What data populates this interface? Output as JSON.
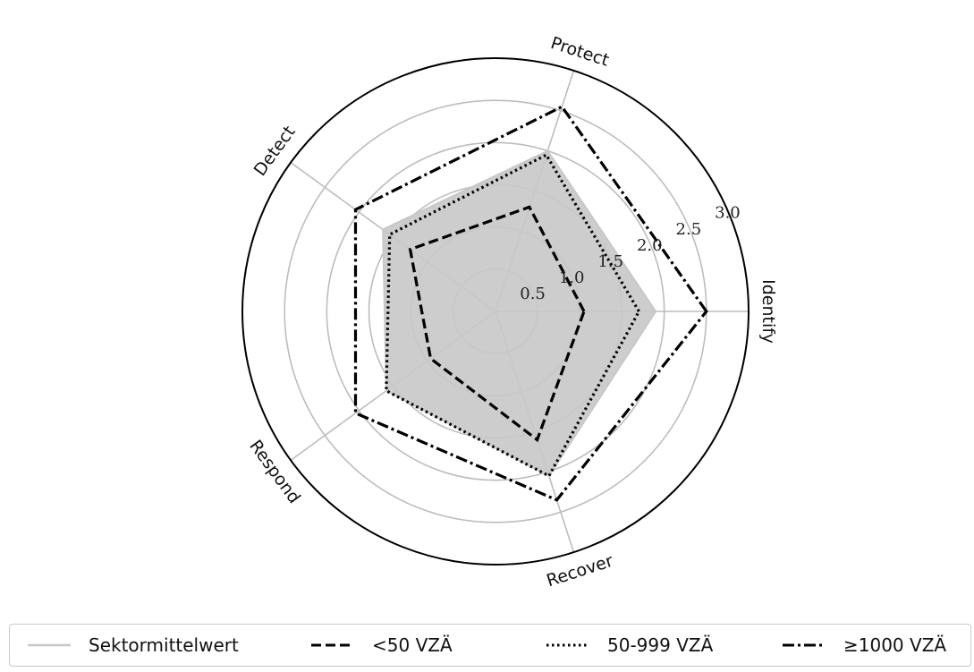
{
  "chart_data": {
    "type": "radar",
    "title": "",
    "axes": [
      "Identify",
      "Protect",
      "Detect",
      "Respond",
      "Recover"
    ],
    "rlim": [
      0,
      3.0
    ],
    "rticks": [
      "0.5",
      "1.0",
      "1.5",
      "2.0",
      "2.5",
      "3.0"
    ],
    "rtick_values": [
      0.5,
      1.0,
      1.5,
      2.0,
      2.5,
      3.0
    ],
    "grid": true,
    "legend_position": "bottom",
    "series": [
      {
        "name": "Sektormittelwert",
        "style": "filled",
        "color": "#c8c8c8",
        "values": [
          1.9,
          2.0,
          1.65,
          1.6,
          2.05
        ]
      },
      {
        "name": "<50 VZÄ",
        "style": "dashed",
        "color": "#000000",
        "values": [
          1.05,
          1.3,
          1.25,
          0.95,
          1.6
        ]
      },
      {
        "name": "50-999 VZÄ",
        "style": "dotted",
        "color": "#000000",
        "values": [
          1.7,
          1.95,
          1.55,
          1.6,
          2.05
        ]
      },
      {
        "name": "≥1000 VZÄ",
        "style": "dashdot",
        "color": "#000000",
        "values": [
          2.5,
          2.55,
          2.05,
          2.05,
          2.35
        ]
      }
    ]
  }
}
